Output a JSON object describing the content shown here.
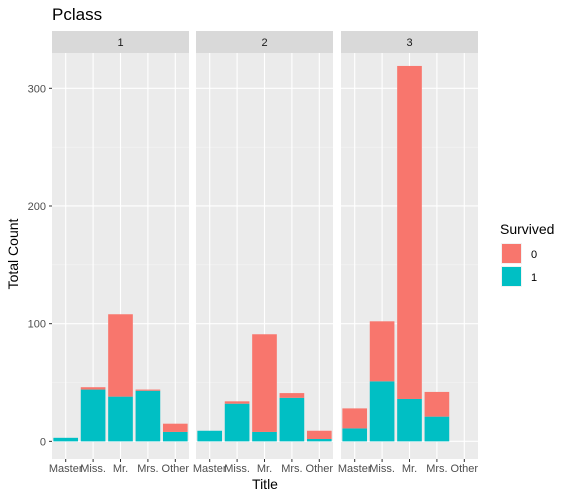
{
  "chart_data": {
    "type": "bar",
    "stacked": true,
    "faceted": true,
    "title": "Pclass",
    "xlabel": "Title",
    "ylabel": "Total Count",
    "ylim": [
      -15,
      330
    ],
    "yticks": [
      0,
      100,
      200,
      300
    ],
    "grid": true,
    "legend_position": "right",
    "legend_title": "Survived",
    "categories": [
      "Master",
      "Miss.",
      "Mr.",
      "Mrs.",
      "Other"
    ],
    "series": [
      {
        "name": "0",
        "color": "#F8766D"
      },
      {
        "name": "1",
        "color": "#00BFC4"
      }
    ],
    "facets": [
      {
        "label": "1",
        "bars": [
          {
            "category": "Master",
            "s0": 0,
            "s1": 3
          },
          {
            "category": "Miss.",
            "s0": 2,
            "s1": 44
          },
          {
            "category": "Mr.",
            "s0": 70,
            "s1": 38
          },
          {
            "category": "Mrs.",
            "s0": 1,
            "s1": 43
          },
          {
            "category": "Other",
            "s0": 7,
            "s1": 8
          }
        ]
      },
      {
        "label": "2",
        "bars": [
          {
            "category": "Master",
            "s0": 0,
            "s1": 9
          },
          {
            "category": "Miss.",
            "s0": 2,
            "s1": 32
          },
          {
            "category": "Mr.",
            "s0": 83,
            "s1": 8
          },
          {
            "category": "Mrs.",
            "s0": 4,
            "s1": 37
          },
          {
            "category": "Other",
            "s0": 7,
            "s1": 2
          }
        ]
      },
      {
        "label": "3",
        "bars": [
          {
            "category": "Master",
            "s0": 17,
            "s1": 11
          },
          {
            "category": "Miss.",
            "s0": 51,
            "s1": 51
          },
          {
            "category": "Mr.",
            "s0": 283,
            "s1": 36
          },
          {
            "category": "Mrs.",
            "s0": 21,
            "s1": 21
          },
          {
            "category": "Other",
            "s0": 0,
            "s1": 0
          }
        ]
      }
    ]
  }
}
